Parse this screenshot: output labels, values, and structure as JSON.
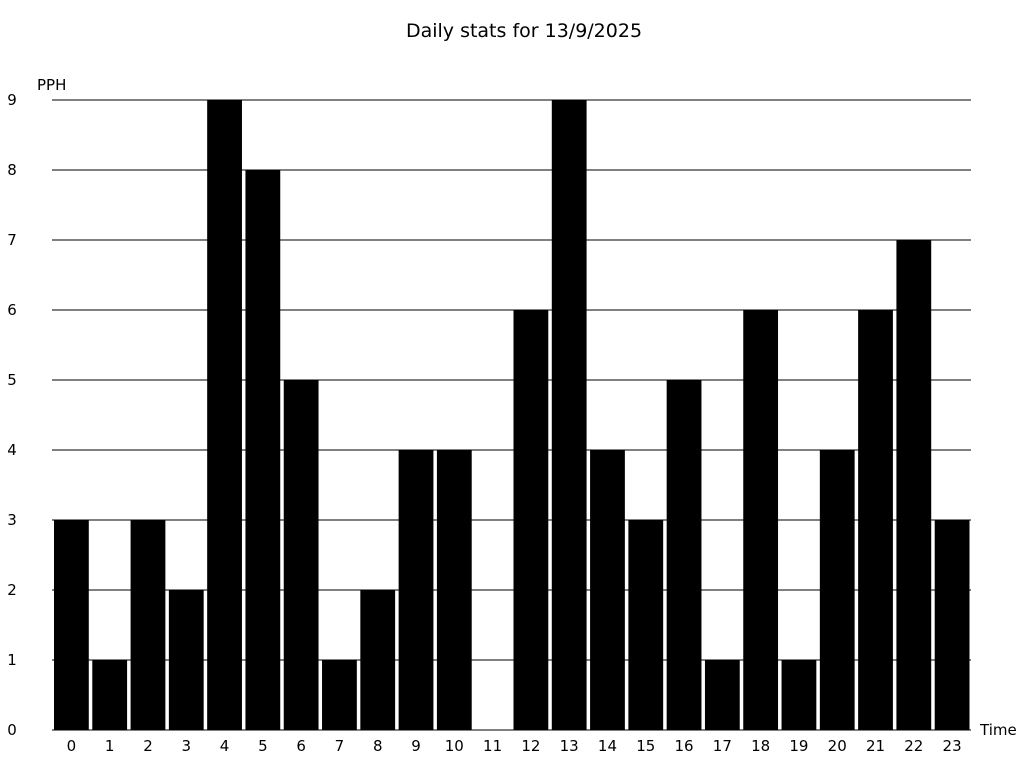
{
  "chart_data": {
    "type": "bar",
    "title": "Daily stats for 13/9/2025",
    "xlabel": "Time",
    "ylabel": "PPH",
    "ylim": [
      0,
      9
    ],
    "yticks": [
      0,
      1,
      2,
      3,
      4,
      5,
      6,
      7,
      8,
      9
    ],
    "grid": "horizontal",
    "bar_color": "#000000",
    "categories": [
      "0",
      "1",
      "2",
      "3",
      "4",
      "5",
      "6",
      "7",
      "8",
      "9",
      "10",
      "11",
      "12",
      "13",
      "14",
      "15",
      "16",
      "17",
      "18",
      "19",
      "20",
      "21",
      "22",
      "23"
    ],
    "values": [
      3,
      1,
      3,
      2,
      9,
      8,
      5,
      1,
      2,
      4,
      4,
      0,
      6,
      9,
      4,
      3,
      5,
      1,
      6,
      1,
      4,
      6,
      7,
      3
    ]
  }
}
